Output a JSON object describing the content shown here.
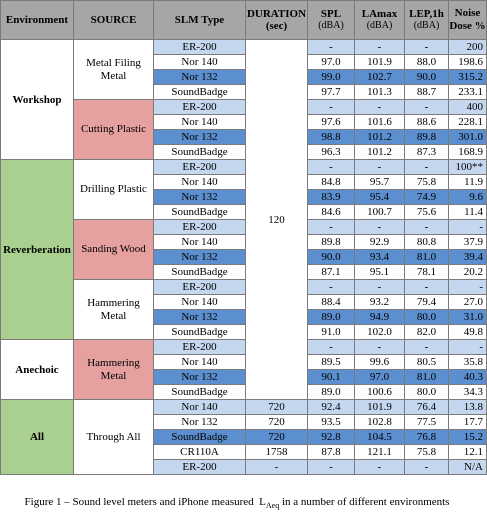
{
  "headers": {
    "environment": "Environment",
    "source": "SOURCE",
    "slm_type": "SLM Type",
    "duration": "DURATION (sec)",
    "spl": "SPL",
    "spl_unit": "(dBA)",
    "lamax": "LAmax",
    "lamax_unit": "(dBA)",
    "lep": "LEP,1h",
    "lep_unit": "(dBA)",
    "dose": "Noise Dose %"
  },
  "colors": {
    "workshop": "#ffffff",
    "reverberation": "#a9d08e",
    "anechoic": "#ffffff",
    "all": "#a9d08e",
    "source_red": "#e6a0a0",
    "row_dark": "#5b8fd0",
    "row_light": "#c5d7ef",
    "header": "#a6a6a6"
  },
  "environments": {
    "workshop": "Workshop",
    "reverberation": "Reverberation",
    "anechoic": "Anechoic",
    "all": "All"
  },
  "sources": {
    "metal_filing": "Metal Filing Metal",
    "cutting_plastic": "Cutting Plastic",
    "drilling_plastic": "Drilling Plastic",
    "sanding_wood": "Sanding Wood",
    "hammering_metal_rev": "Hammering Metal",
    "hammering_metal_ane": "Hammering Metal",
    "through_all": "Through All"
  },
  "duration_shared": "120",
  "rows": [
    {
      "slm": "ER-200",
      "spl": "-",
      "lamax": "-",
      "lep": "-",
      "dose": "200"
    },
    {
      "slm": "Nor 140",
      "spl": "97.0",
      "lamax": "101.9",
      "lep": "88.0",
      "dose": "198.6"
    },
    {
      "slm": "Nor 132",
      "spl": "99.0",
      "lamax": "102.7",
      "lep": "90.0",
      "dose": "315.2"
    },
    {
      "slm": "SoundBadge",
      "spl": "97.7",
      "lamax": "101.3",
      "lep": "88.7",
      "dose": "233.1"
    },
    {
      "slm": "ER-200",
      "spl": "-",
      "lamax": "-",
      "lep": "-",
      "dose": "400"
    },
    {
      "slm": "Nor 140",
      "spl": "97.6",
      "lamax": "101.6",
      "lep": "88.6",
      "dose": "228.1"
    },
    {
      "slm": "Nor 132",
      "spl": "98.8",
      "lamax": "101.2",
      "lep": "89.8",
      "dose": "301.0"
    },
    {
      "slm": "SoundBadge",
      "spl": "96.3",
      "lamax": "101.2",
      "lep": "87.3",
      "dose": "168.9"
    },
    {
      "slm": "ER-200",
      "spl": "-",
      "lamax": "-",
      "lep": "-",
      "dose": "100**"
    },
    {
      "slm": "Nor 140",
      "spl": "84.8",
      "lamax": "95.7",
      "lep": "75.8",
      "dose": "11.9"
    },
    {
      "slm": "Nor 132",
      "spl": "83.9",
      "lamax": "95.4",
      "lep": "74.9",
      "dose": "9.6"
    },
    {
      "slm": "SoundBadge",
      "spl": "84.6",
      "lamax": "100.7",
      "lep": "75.6",
      "dose": "11.4"
    },
    {
      "slm": "ER-200",
      "spl": "-",
      "lamax": "-",
      "lep": "-",
      "dose": "-"
    },
    {
      "slm": "Nor 140",
      "spl": "89.8",
      "lamax": "92.9",
      "lep": "80.8",
      "dose": "37.9"
    },
    {
      "slm": "Nor 132",
      "spl": "90.0",
      "lamax": "93.4",
      "lep": "81.0",
      "dose": "39.4"
    },
    {
      "slm": "SoundBadge",
      "spl": "87.1",
      "lamax": "95.1",
      "lep": "78.1",
      "dose": "20.2"
    },
    {
      "slm": "ER-200",
      "spl": "-",
      "lamax": "-",
      "lep": "-",
      "dose": "-"
    },
    {
      "slm": "Nor 140",
      "spl": "88.4",
      "lamax": "93.2",
      "lep": "79.4",
      "dose": "27.0"
    },
    {
      "slm": "Nor 132",
      "spl": "89.0",
      "lamax": "94.9",
      "lep": "80.0",
      "dose": "31.0"
    },
    {
      "slm": "SoundBadge",
      "spl": "91.0",
      "lamax": "102.0",
      "lep": "82.0",
      "dose": "49.8"
    },
    {
      "slm": "ER-200",
      "spl": "-",
      "lamax": "-",
      "lep": "-",
      "dose": "-"
    },
    {
      "slm": "Nor 140",
      "spl": "89.5",
      "lamax": "99.6",
      "lep": "80.5",
      "dose": "35.8"
    },
    {
      "slm": "Nor 132",
      "spl": "90.1",
      "lamax": "97.0",
      "lep": "81.0",
      "dose": "40.3"
    },
    {
      "slm": "SoundBadge",
      "spl": "89.0",
      "lamax": "100.6",
      "lep": "80.0",
      "dose": "34.3"
    },
    {
      "slm": "Nor 140",
      "dur": "720",
      "spl": "92.4",
      "lamax": "101.9",
      "lep": "76.4",
      "dose": "13.8"
    },
    {
      "slm": "Nor 132",
      "dur": "720",
      "spl": "93.5",
      "lamax": "102.8",
      "lep": "77.5",
      "dose": "17.7"
    },
    {
      "slm": "SoundBadge",
      "dur": "720",
      "spl": "92.8",
      "lamax": "104.5",
      "lep": "76.8",
      "dose": "15.2"
    },
    {
      "slm": "CR110A",
      "dur": "1758",
      "spl": "87.8",
      "lamax": "121.1",
      "lep": "75.8",
      "dose": "12.1"
    },
    {
      "slm": "ER-200",
      "dur": "-",
      "spl": "-",
      "lamax": "-",
      "lep": "-",
      "dose": "N/A"
    }
  ],
  "caption_prefix": "Figure 1 – Sound level meters and iPhone measured",
  "caption_laeq": "L",
  "caption_laeq_sub": "Aeq",
  "caption_suffix": "in a number of different environments"
}
